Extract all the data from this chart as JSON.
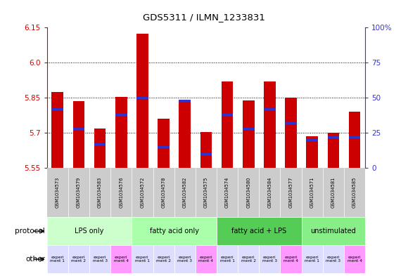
{
  "title": "GDS5311 / ILMN_1233831",
  "samples": [
    "GSM1034573",
    "GSM1034579",
    "GSM1034583",
    "GSM1034576",
    "GSM1034572",
    "GSM1034578",
    "GSM1034582",
    "GSM1034575",
    "GSM1034574",
    "GSM1034580",
    "GSM1034584",
    "GSM1034577",
    "GSM1034571",
    "GSM1034581",
    "GSM1034585"
  ],
  "transformed_count": [
    5.875,
    5.835,
    5.72,
    5.855,
    6.125,
    5.76,
    5.835,
    5.705,
    5.92,
    5.84,
    5.92,
    5.85,
    5.685,
    5.7,
    5.79
  ],
  "percentile_rank": [
    42,
    28,
    17,
    38,
    50,
    15,
    48,
    10,
    38,
    28,
    42,
    32,
    20,
    22,
    22
  ],
  "y_min": 5.55,
  "y_max": 6.15,
  "y_ticks_left": [
    5.55,
    5.7,
    5.85,
    6.0,
    6.15
  ],
  "y_ticks_right": [
    0,
    25,
    50,
    75,
    100
  ],
  "bar_color": "#cc0000",
  "blue_color": "#3333cc",
  "protocol_groups": [
    {
      "label": "LPS only",
      "start": 0,
      "end": 4,
      "color": "#ccffcc"
    },
    {
      "label": "fatty acid only",
      "start": 4,
      "end": 8,
      "color": "#aaffaa"
    },
    {
      "label": "fatty acid + LPS",
      "start": 8,
      "end": 12,
      "color": "#55cc55"
    },
    {
      "label": "unstimulated",
      "start": 12,
      "end": 15,
      "color": "#88ee88"
    }
  ],
  "other_labels": [
    "experi\nment 1",
    "experi\nment 2",
    "experi\nment 3",
    "experi\nment 4",
    "experi\nment 1",
    "experi\nment 2",
    "experi\nment 3",
    "experi\nment 4",
    "experi\nment 1",
    "experi\nment 2",
    "experi\nment 3",
    "experi\nment 4",
    "experi\nment 1",
    "experi\nment 3",
    "experi\nment 4"
  ],
  "other_colors": [
    "#ddddff",
    "#ddddff",
    "#ddddff",
    "#ff99ff",
    "#ddddff",
    "#ddddff",
    "#ddddff",
    "#ff99ff",
    "#ddddff",
    "#ddddff",
    "#ddddff",
    "#ff99ff",
    "#ddddff",
    "#ddddff",
    "#ff99ff"
  ],
  "bg_color": "#ffffff",
  "left_axis_color": "#cc0000",
  "right_axis_color": "#3333cc",
  "bar_width": 0.55,
  "sample_box_color": "#cccccc",
  "grid_yticks": [
    5.7,
    5.85,
    6.0
  ]
}
